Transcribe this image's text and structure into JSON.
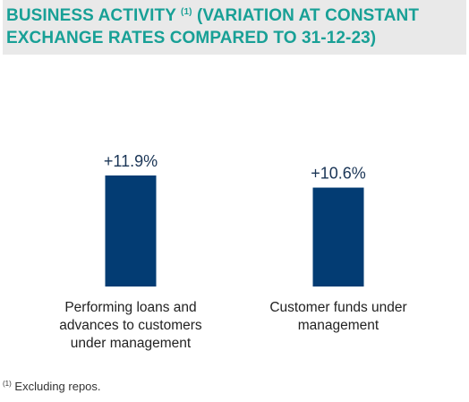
{
  "header": {
    "title_part1": "BUSINESS ACTIVITY",
    "title_marker": "(1)",
    "title_part2": "(VARIATION AT CONSTANT EXCHANGE RATES COMPARED TO 31-12-23)"
  },
  "chart_data": {
    "type": "bar",
    "categories": [
      "Performing loans and advances to customers under management",
      "Customer funds under management"
    ],
    "category_lines": [
      [
        "Performing loans and",
        "advances to customers",
        "under management"
      ],
      [
        "Customer funds under",
        "management"
      ]
    ],
    "values": [
      11.9,
      10.6
    ],
    "value_labels": [
      "+11.9%",
      "+10.6%"
    ],
    "unit": "%",
    "bar_color": "#033c73",
    "title_color": "#18a096",
    "header_bg": "#e9e9e9",
    "grid": false,
    "legend": "none"
  },
  "footnote": {
    "marker": "(1)",
    "text": "Excluding repos."
  }
}
